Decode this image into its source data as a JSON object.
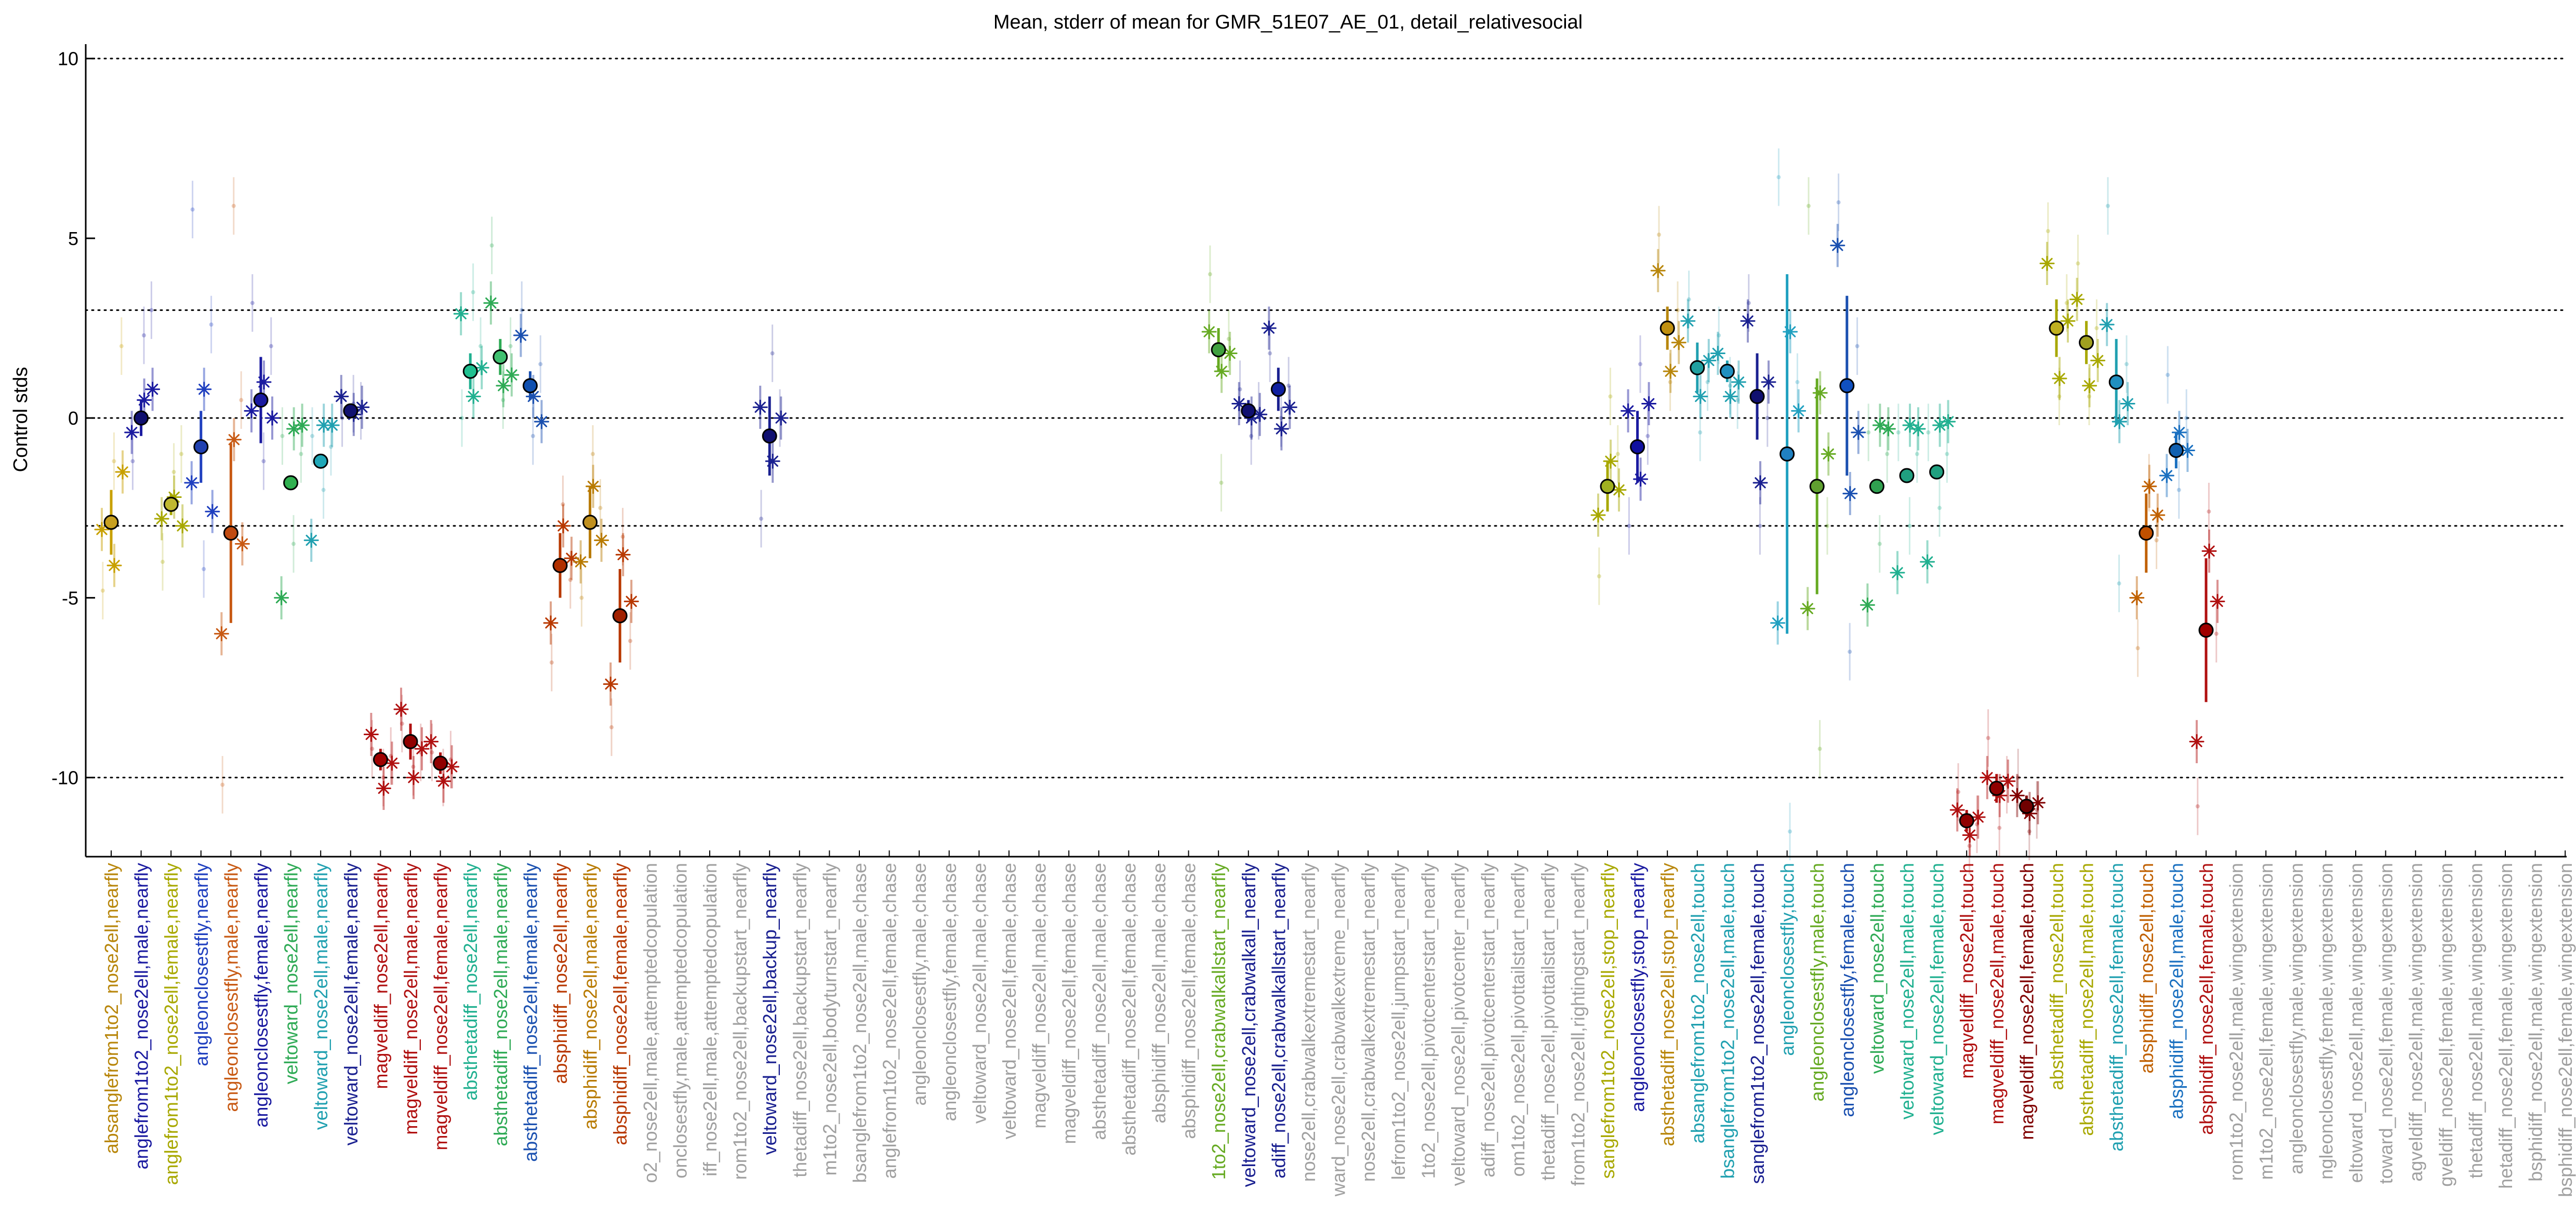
{
  "chart_data": {
    "type": "scatter",
    "title": "Mean, stderr of mean for GMR_51E07_AE_01, detail_relativesocial",
    "xlabel": "",
    "ylabel": "Control stds",
    "ylim": [
      -12.2,
      10.4
    ],
    "yticks": [
      -10,
      -5,
      0,
      5,
      10
    ],
    "hlines": [
      {
        "y": 10,
        "style": "dotted"
      },
      {
        "y": 3,
        "style": "dotted"
      },
      {
        "y": 0,
        "style": "dotted"
      },
      {
        "y": -3,
        "style": "dotted"
      },
      {
        "y": -10,
        "style": "dotted"
      }
    ],
    "grid": false,
    "legend": "none",
    "colors": {
      "absanglefrom1to2": "#b8860b",
      "anglefrom1to2": "#1a1aa0",
      "anglefrom1to2_female": "#a8a800",
      "angleonclosestfly": "#1f3fbf",
      "angleonclosestfly_male": "#c85a14",
      "veltoward": "#2eaa55",
      "veltoward_male": "#20a0b0",
      "veltoward_female": "#1a2090",
      "magveldiff": "#b01010",
      "absthetadiff": "#20b090",
      "absthetadiff_female": "#1a50b0",
      "absphidiff": "#b87a00",
      "absphidiff_female": "#b83800",
      "inactive": "#a0a0a0",
      "line": "#000000"
    },
    "categories": [
      "absanglefrom1to2_nose2ell,nearfly",
      "anglefrom1to2_nose2ell,male,nearfly",
      "anglefrom1to2_nose2ell,female,nearfly",
      "angleonclosestfly,nearfly",
      "angleonclosestfly,male,nearfly",
      "angleonclosestfly,female,nearfly",
      "veltoward_nose2ell,nearfly",
      "veltoward_nose2ell,male,nearfly",
      "veltoward_nose2ell,female,nearfly",
      "magveldiff_nose2ell,nearfly",
      "magveldiff_nose2ell,male,nearfly",
      "magveldiff_nose2ell,female,nearfly",
      "absthetadiff_nose2ell,nearfly",
      "absthetadiff_nose2ell,male,nearfly",
      "absthetadiff_nose2ell,female,nearfly",
      "absphidiff_nose2ell,nearfly",
      "absphidiff_nose2ell,male,nearfly",
      "absphidiff_nose2ell,female,nearfly",
      "o2_nose2ell,male,attemptedcopulation",
      "onclosestfly,male,attemptedcopulation",
      "iff_nose2ell,male,attemptedcopulation",
      "rom1to2_nose2ell,backupstart_nearfly",
      "veltoward_nose2ell,backup_nearfly",
      "thetadiff_nose2ell,backupstart_nearfly",
      "m1to2_nose2ell,bodyturnstart_nearfly",
      "bsanglefrom1to2_nose2ell,male,chase",
      "anglefrom1to2_nose2ell,female,chase",
      "angleonclosestfly,male,chase",
      "angleonclosestfly,female,chase",
      "veltoward_nose2ell,male,chase",
      "veltoward_nose2ell,female,chase",
      "magveldiff_nose2ell,male,chase",
      "magveldiff_nose2ell,female,chase",
      "absthetadiff_nose2ell,male,chase",
      "absthetadiff_nose2ell,female,chase",
      "absphidiff_nose2ell,male,chase",
      "absphidiff_nose2ell,female,chase",
      "1to2_nose2ell,crabwalkallstart_nearfly",
      "veltoward_nose2ell,crabwalkall_nearfly",
      "adiff_nose2ell,crabwalkallstart_nearfly",
      "nose2ell,crabwalkextremestart_nearfly",
      "ward_nose2ell,crabwalkextreme_nearfly",
      "nose2ell,crabwalkextremestart_nearfly",
      "lefrom1to2_nose2ell,jumpstart_nearfly",
      "1to2_nose2ell,pivotcenterstart_nearfly",
      "veltoward_nose2ell,pivotcenter_nearfly",
      "adiff_nose2ell,pivotcenterstart_nearfly",
      "om1to2_nose2ell,pivottailstart_nearfly",
      "thetadiff_nose2ell,pivottailstart_nearfly",
      "from1to2_nose2ell,rightingstart_nearfly",
      "sanglefrom1to2_nose2ell,stop_nearfly",
      "angleonclosestfly,stop_nearfly",
      "absthetadiff_nose2ell,stop_nearfly",
      "absanglefrom1to2_nose2ell,touch",
      "bsanglefrom1to2_nose2ell,male,touch",
      "sanglefrom1to2_nose2ell,female,touch",
      "angleonclosestfly,touch",
      "angleonclosestfly,male,touch",
      "angleonclosestfly,female,touch",
      "veltoward_nose2ell,touch",
      "veltoward_nose2ell,male,touch",
      "veltoward_nose2ell,female,touch",
      "magveldiff_nose2ell,touch",
      "magveldiff_nose2ell,male,touch",
      "magveldiff_nose2ell,female,touch",
      "absthetadiff_nose2ell,touch",
      "absthetadiff_nose2ell,male,touch",
      "absthetadiff_nose2ell,female,touch",
      "absphidiff_nose2ell,touch",
      "absphidiff_nose2ell,male,touch",
      "absphidiff_nose2ell,female,touch",
      "rom1to2_nose2ell,male,wingextension",
      "m1to2_nose2ell,female,wingextension",
      "angleonclosestfly,male,wingextension",
      "ngleonclosestfly,female,wingextension",
      "eltoward_nose2ell,male,wingextension",
      "toward_nose2ell,female,wingextension",
      "agveldiff_nose2ell,male,wingextension",
      "gveldiff_nose2ell,female,wingextension",
      "thetadiff_nose2ell,male,wingextension",
      "hetadiff_nose2ell,female,wingextension",
      "bsphidiff_nose2ell,male,wingextension",
      "bsphidiff_nose2ell,female,wingextension"
    ],
    "label_colors": [
      "#b8860b",
      "#1a1aa0",
      "#a8a800",
      "#1f3fbf",
      "#c85a14",
      "#1a1aa0",
      "#2eaa55",
      "#20a0b0",
      "#1a2090",
      "#b01010",
      "#b01010",
      "#b01010",
      "#20b090",
      "#2eaa55",
      "#1a50b0",
      "#b83800",
      "#b87a00",
      "#b83800",
      "#a0a0a0",
      "#a0a0a0",
      "#a0a0a0",
      "#a0a0a0",
      "#1a2090",
      "#a0a0a0",
      "#a0a0a0",
      "#a0a0a0",
      "#a0a0a0",
      "#a0a0a0",
      "#a0a0a0",
      "#a0a0a0",
      "#a0a0a0",
      "#a0a0a0",
      "#a0a0a0",
      "#a0a0a0",
      "#a0a0a0",
      "#a0a0a0",
      "#a0a0a0",
      "#66aa22",
      "#1a2090",
      "#1a2090",
      "#a0a0a0",
      "#a0a0a0",
      "#a0a0a0",
      "#a0a0a0",
      "#a0a0a0",
      "#a0a0a0",
      "#a0a0a0",
      "#a0a0a0",
      "#a0a0a0",
      "#a0a0a0",
      "#a8a800",
      "#1a1aa0",
      "#b8860b",
      "#20a0b0",
      "#20a0b0",
      "#1a2090",
      "#20a0b0",
      "#66aa22",
      "#1a50b0",
      "#2eaa55",
      "#20b090",
      "#20b090",
      "#b01010",
      "#b01010",
      "#800000",
      "#a8a800",
      "#a8a800",
      "#20a0b0",
      "#c06000",
      "#1a70c0",
      "#b01010",
      "#a0a0a0",
      "#a0a0a0",
      "#a0a0a0",
      "#a0a0a0",
      "#a0a0a0",
      "#a0a0a0",
      "#a0a0a0",
      "#a0a0a0",
      "#a0a0a0",
      "#a0a0a0",
      "#a0a0a0",
      "#a0a0a0"
    ],
    "points": [
      {
        "i": 0,
        "mean": -2.9,
        "se": 0.9,
        "color": "#c8a000",
        "fill": "#c8a020",
        "stars": [
          -3.1,
          -4.1,
          -1.5
        ],
        "faint": [
          -4.8,
          -1.2,
          2.0
        ]
      },
      {
        "i": 1,
        "mean": 0.0,
        "se": 0.5,
        "color": "#1a1aa0",
        "fill": "#101070",
        "stars": [
          -0.4,
          0.5,
          0.8
        ],
        "faint": [
          -1.2,
          2.3,
          3.0
        ]
      },
      {
        "i": 2,
        "mean": -2.4,
        "se": 0.3,
        "color": "#a8a800",
        "fill": "#c0b830",
        "stars": [
          -2.8,
          -2.2,
          -3.0
        ],
        "faint": [
          -4.0,
          -1.5,
          -1.0
        ]
      },
      {
        "i": 3,
        "mean": -0.8,
        "se": 1.0,
        "color": "#1f3fbf",
        "fill": "#2040b0",
        "stars": [
          -1.8,
          0.8,
          -2.6
        ],
        "faint": [
          5.8,
          -4.2,
          2.6
        ]
      },
      {
        "i": 4,
        "mean": -3.2,
        "se": 2.5,
        "color": "#c85a14",
        "fill": "#c04a10",
        "stars": [
          -6.0,
          -0.6,
          -3.5
        ],
        "faint": [
          -10.2,
          5.9,
          0.5
        ]
      },
      {
        "i": 5,
        "mean": 0.5,
        "se": 1.2,
        "color": "#1a1aa0",
        "fill": "#1a1aa0",
        "stars": [
          0.2,
          1.0,
          0.0
        ],
        "faint": [
          3.2,
          -1.2,
          2.0
        ]
      },
      {
        "i": 6,
        "mean": -1.8,
        "se": 0.2,
        "color": "#2eaa55",
        "fill": "#30b050",
        "stars": [
          -5.0,
          -0.3,
          -0.2
        ],
        "faint": [
          -0.5,
          -3.5,
          -1.0
        ]
      },
      {
        "i": 7,
        "mean": -1.2,
        "se": 0.2,
        "color": "#20a0b0",
        "fill": "#20a8b8",
        "stars": [
          -3.4,
          -0.2,
          -0.2
        ],
        "faint": [
          -0.5,
          -2.0,
          -0.8
        ]
      },
      {
        "i": 8,
        "mean": 0.2,
        "se": 0.2,
        "color": "#1a2090",
        "fill": "#101070",
        "stars": [
          0.6,
          0.1,
          0.3
        ],
        "faint": [
          0.0,
          0.4,
          0.2
        ]
      },
      {
        "i": 9,
        "mean": -9.5,
        "se": 0.3,
        "color": "#b01010",
        "fill": "#a00000",
        "stars": [
          -8.8,
          -10.3,
          -9.6
        ],
        "faint": [
          -9.2,
          -10.0,
          -9.4
        ]
      },
      {
        "i": 10,
        "mean": -9.0,
        "se": 0.5,
        "color": "#b01010",
        "fill": "#900000",
        "stars": [
          -8.1,
          -10.0,
          -9.2
        ],
        "faint": [
          -8.5,
          -9.7,
          -9.3
        ]
      },
      {
        "i": 11,
        "mean": -9.6,
        "se": 0.3,
        "color": "#b01010",
        "fill": "#900000",
        "stars": [
          -9.0,
          -10.1,
          -9.7
        ],
        "faint": [
          -9.3,
          -10.0,
          -9.5
        ]
      },
      {
        "i": 12,
        "mean": 1.3,
        "se": 0.5,
        "color": "#20b090",
        "fill": "#20c090",
        "stars": [
          2.9,
          0.6,
          1.4
        ],
        "faint": [
          0.0,
          3.5,
          2.0
        ]
      },
      {
        "i": 13,
        "mean": 1.7,
        "se": 0.5,
        "color": "#2eaa55",
        "fill": "#40c070",
        "stars": [
          3.2,
          0.9,
          1.2
        ],
        "faint": [
          4.8,
          0.5,
          2.0
        ]
      },
      {
        "i": 14,
        "mean": 0.9,
        "se": 0.4,
        "color": "#1a50b0",
        "fill": "#1050b0",
        "stars": [
          2.3,
          0.6,
          -0.1
        ],
        "faint": [
          3.0,
          -0.5,
          1.5
        ]
      },
      {
        "i": 15,
        "mean": -4.1,
        "se": 0.9,
        "color": "#b83800",
        "fill": "#b03000",
        "stars": [
          -5.7,
          -3.0,
          -3.9
        ],
        "faint": [
          -6.8,
          -2.4,
          -4.5
        ]
      },
      {
        "i": 16,
        "mean": -2.9,
        "se": 1.0,
        "color": "#b87a00",
        "fill": "#c09020",
        "stars": [
          -4.0,
          -1.9,
          -3.4
        ],
        "faint": [
          -5.0,
          -1.0,
          -2.5
        ]
      },
      {
        "i": 17,
        "mean": -5.5,
        "se": 1.3,
        "color": "#b83800",
        "fill": "#a02000",
        "stars": [
          -7.4,
          -3.8,
          -5.1
        ],
        "faint": [
          -8.6,
          -3.3,
          -6.2
        ]
      },
      {
        "i": 22,
        "mean": -0.5,
        "se": 1.1,
        "color": "#1a2090",
        "fill": "#101070",
        "stars": [
          0.3,
          -1.2,
          0.0
        ],
        "faint": [
          -2.8,
          1.8,
          0.0
        ]
      },
      {
        "i": 37,
        "mean": 1.9,
        "se": 0.6,
        "color": "#66aa22",
        "fill": "#40a040",
        "stars": [
          2.4,
          1.3,
          1.8
        ],
        "faint": [
          4.0,
          -1.8,
          2.2
        ]
      },
      {
        "i": 38,
        "mean": 0.2,
        "se": 0.3,
        "color": "#1a2090",
        "fill": "#101070",
        "stars": [
          0.4,
          0.0,
          0.1
        ],
        "faint": [
          0.8,
          -0.5,
          0.2
        ]
      },
      {
        "i": 39,
        "mean": 0.8,
        "se": 0.6,
        "color": "#1a2090",
        "fill": "#1020a0",
        "stars": [
          2.5,
          -0.3,
          0.3
        ],
        "faint": [
          1.8,
          0.0,
          0.9
        ]
      },
      {
        "i": 50,
        "mean": -1.9,
        "se": 0.7,
        "color": "#a8a800",
        "fill": "#a0b020",
        "stars": [
          -2.7,
          -1.2,
          -2.0
        ],
        "faint": [
          -4.4,
          0.6,
          -1.0
        ]
      },
      {
        "i": 51,
        "mean": -0.8,
        "se": 1.0,
        "color": "#1a1aa0",
        "fill": "#1010a0",
        "stars": [
          0.2,
          -1.7,
          0.4
        ],
        "faint": [
          -3.0,
          1.5,
          -0.5
        ]
      },
      {
        "i": 52,
        "mean": 2.5,
        "se": 0.6,
        "color": "#b8860b",
        "fill": "#c09010",
        "stars": [
          4.1,
          1.3,
          2.1
        ],
        "faint": [
          5.1,
          1.0,
          3.0
        ]
      },
      {
        "i": 53,
        "mean": 1.4,
        "se": 0.7,
        "color": "#20a0b0",
        "fill": "#20a0a0",
        "stars": [
          2.7,
          0.6,
          1.6
        ],
        "faint": [
          3.3,
          -0.4,
          1.0
        ]
      },
      {
        "i": 54,
        "mean": 1.3,
        "se": 0.3,
        "color": "#20a0b0",
        "fill": "#2090c0",
        "stars": [
          1.8,
          0.6,
          1.0
        ],
        "faint": [
          2.3,
          0.9,
          0.5
        ]
      },
      {
        "i": 55,
        "mean": 0.6,
        "se": 1.2,
        "color": "#1a2090",
        "fill": "#101070",
        "stars": [
          2.7,
          -1.8,
          1.0
        ],
        "faint": [
          3.2,
          -3.0,
          0.0
        ]
      },
      {
        "i": 56,
        "mean": -1.0,
        "se": 5.0,
        "color": "#20a0c0",
        "fill": "#2080c0",
        "stars": [
          -5.7,
          2.4,
          0.2
        ],
        "faint": [
          6.7,
          -11.5,
          1.0
        ]
      },
      {
        "i": 57,
        "mean": -1.9,
        "se": 3.0,
        "color": "#66aa22",
        "fill": "#60a030",
        "stars": [
          -5.3,
          0.7,
          -1.0
        ],
        "faint": [
          5.9,
          -9.2,
          -3.0
        ]
      },
      {
        "i": 58,
        "mean": 0.9,
        "se": 2.5,
        "color": "#1a50b0",
        "fill": "#1050c0",
        "stars": [
          4.8,
          -2.1,
          -0.4
        ],
        "faint": [
          6.0,
          -6.5,
          2.0
        ]
      },
      {
        "i": 59,
        "mean": -1.9,
        "se": 0.2,
        "color": "#2eaa55",
        "fill": "#30a050",
        "stars": [
          -5.2,
          -0.2,
          -0.3
        ],
        "faint": [
          -0.4,
          -3.5,
          -1.0
        ]
      },
      {
        "i": 60,
        "mean": -1.6,
        "se": 0.2,
        "color": "#20b090",
        "fill": "#20a080",
        "stars": [
          -4.3,
          -0.2,
          -0.3
        ],
        "faint": [
          -0.4,
          -3.0,
          -1.0
        ]
      },
      {
        "i": 61,
        "mean": -1.5,
        "se": 0.2,
        "color": "#20b090",
        "fill": "#20a080",
        "stars": [
          -4.0,
          -0.2,
          -0.1
        ],
        "faint": [
          -0.4,
          -2.5,
          -1.0
        ]
      },
      {
        "i": 62,
        "mean": -11.2,
        "se": 0.3,
        "color": "#b01010",
        "fill": "#900000",
        "stars": [
          -10.9,
          -11.6,
          -11.1
        ],
        "faint": [
          -10.4,
          -11.9,
          -11.3
        ]
      },
      {
        "i": 63,
        "mean": -10.3,
        "se": 0.4,
        "color": "#b01010",
        "fill": "#900000",
        "stars": [
          -10.0,
          -10.5,
          -10.1
        ],
        "faint": [
          -8.9,
          -11.4,
          -10.2
        ]
      },
      {
        "i": 64,
        "mean": -10.8,
        "se": 0.3,
        "color": "#800000",
        "fill": "#700000",
        "stars": [
          -10.5,
          -11.0,
          -10.7
        ],
        "faint": [
          -10.0,
          -11.5,
          -10.9
        ]
      },
      {
        "i": 65,
        "mean": 2.5,
        "se": 0.8,
        "color": "#a8a800",
        "fill": "#c0b020",
        "stars": [
          4.3,
          1.1,
          2.7
        ],
        "faint": [
          5.2,
          0.6,
          3.2
        ]
      },
      {
        "i": 66,
        "mean": 2.1,
        "se": 0.6,
        "color": "#a8a800",
        "fill": "#a0a020",
        "stars": [
          3.3,
          0.9,
          1.6
        ],
        "faint": [
          4.3,
          0.6,
          2.5
        ]
      },
      {
        "i": 67,
        "mean": 1.0,
        "se": 1.2,
        "color": "#20a0b0",
        "fill": "#2090c0",
        "stars": [
          2.6,
          -0.1,
          0.4
        ],
        "faint": [
          5.9,
          -4.6,
          1.5
        ]
      },
      {
        "i": 68,
        "mean": -3.2,
        "se": 1.1,
        "color": "#c06000",
        "fill": "#c05000",
        "stars": [
          -5.0,
          -1.9,
          -2.7
        ],
        "faint": [
          -6.4,
          -1.8,
          -3.4
        ]
      },
      {
        "i": 69,
        "mean": -0.9,
        "se": 0.5,
        "color": "#1a70c0",
        "fill": "#1060b0",
        "stars": [
          -1.6,
          -0.4,
          -0.9
        ],
        "faint": [
          1.2,
          -2.0,
          0.0
        ]
      },
      {
        "i": 70,
        "mean": -5.9,
        "se": 2.0,
        "color": "#b01010",
        "fill": "#a00000",
        "stars": [
          -9.0,
          -3.7,
          -5.1
        ],
        "faint": [
          -10.8,
          -2.6,
          -6.0
        ]
      }
    ]
  }
}
